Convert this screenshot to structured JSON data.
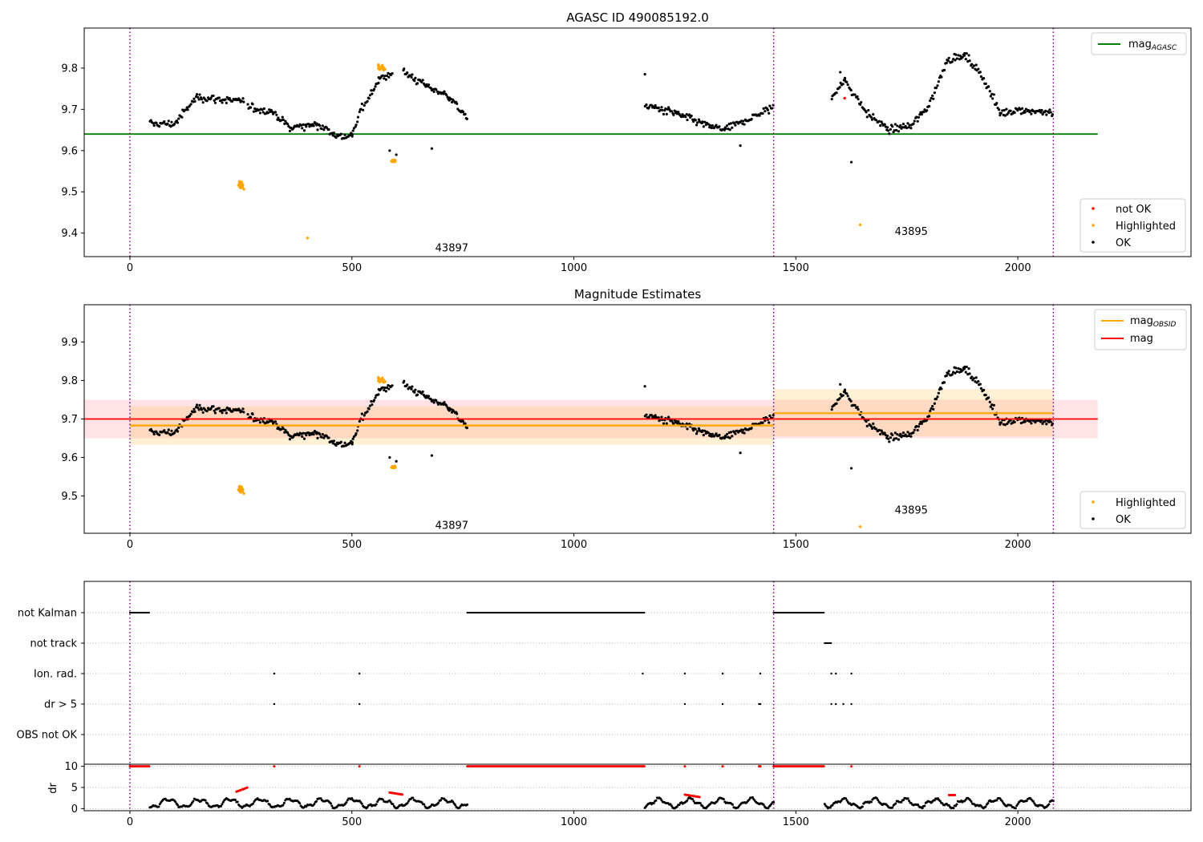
{
  "chart_data": [
    {
      "id": "agasc",
      "type": "scatter",
      "title": "AGASC ID 490085192.0",
      "xlim": [
        -103,
        2390
      ],
      "ylim": [
        9.343,
        9.897
      ],
      "xticks": [
        0,
        500,
        1000,
        1500,
        2000
      ],
      "yticks": [
        9.4,
        9.5,
        9.6,
        9.7,
        9.8
      ],
      "obsid_boundaries": [
        0,
        1450,
        2080
      ],
      "obsid_labels": [
        {
          "text": "43897",
          "x": 725,
          "y": 9.365
        },
        {
          "text": "43895",
          "x": 1760,
          "y": 9.405
        }
      ],
      "reference_line": {
        "name": "mag_AGASC",
        "value": 9.64,
        "x_range": [
          -103,
          2180
        ],
        "color": "#008000"
      },
      "segments": [
        {
          "x0": 45,
          "x1": 100,
          "y0": 9.665,
          "y1": 9.665
        },
        {
          "x0": 100,
          "x1": 150,
          "y0": 9.665,
          "y1": 9.73
        },
        {
          "x0": 150,
          "x1": 240,
          "y0": 9.73,
          "y1": 9.72
        },
        {
          "x0": 240,
          "x1": 258,
          "y0": 9.72,
          "y1": 9.72
        },
        {
          "x0": 265,
          "x1": 320,
          "y0": 9.705,
          "y1": 9.695
        },
        {
          "x0": 320,
          "x1": 360,
          "y0": 9.695,
          "y1": 9.655
        },
        {
          "x0": 360,
          "x1": 420,
          "y0": 9.655,
          "y1": 9.665
        },
        {
          "x0": 420,
          "x1": 470,
          "y0": 9.665,
          "y1": 9.635
        },
        {
          "x0": 470,
          "x1": 500,
          "y0": 9.635,
          "y1": 9.635
        },
        {
          "x0": 500,
          "x1": 520,
          "y0": 9.635,
          "y1": 9.7
        },
        {
          "x0": 520,
          "x1": 560,
          "y0": 9.7,
          "y1": 9.77
        },
        {
          "x0": 560,
          "x1": 590,
          "y0": 9.77,
          "y1": 9.79
        },
        {
          "x0": 615,
          "x1": 680,
          "y0": 9.79,
          "y1": 9.75
        },
        {
          "x0": 680,
          "x1": 720,
          "y0": 9.75,
          "y1": 9.73
        },
        {
          "x0": 720,
          "x1": 760,
          "y0": 9.73,
          "y1": 9.675
        },
        {
          "x0": 1160,
          "x1": 1230,
          "y0": 9.71,
          "y1": 9.69
        },
        {
          "x0": 1230,
          "x1": 1300,
          "y0": 9.69,
          "y1": 9.66
        },
        {
          "x0": 1300,
          "x1": 1340,
          "y0": 9.66,
          "y1": 9.65
        },
        {
          "x0": 1340,
          "x1": 1450,
          "y0": 9.65,
          "y1": 9.705
        },
        {
          "x0": 1580,
          "x1": 1610,
          "y0": 9.73,
          "y1": 9.77
        },
        {
          "x0": 1610,
          "x1": 1660,
          "y0": 9.77,
          "y1": 9.69
        },
        {
          "x0": 1660,
          "x1": 1710,
          "y0": 9.69,
          "y1": 9.65
        },
        {
          "x0": 1710,
          "x1": 1760,
          "y0": 9.65,
          "y1": 9.66
        },
        {
          "x0": 1760,
          "x1": 1800,
          "y0": 9.66,
          "y1": 9.71
        },
        {
          "x0": 1800,
          "x1": 1840,
          "y0": 9.71,
          "y1": 9.82
        },
        {
          "x0": 1840,
          "x1": 1880,
          "y0": 9.82,
          "y1": 9.83
        },
        {
          "x0": 1880,
          "x1": 1920,
          "y0": 9.83,
          "y1": 9.78
        },
        {
          "x0": 1920,
          "x1": 1960,
          "y0": 9.78,
          "y1": 9.69
        },
        {
          "x0": 1960,
          "x1": 2000,
          "y0": 9.69,
          "y1": 9.7
        },
        {
          "x0": 2000,
          "x1": 2080,
          "y0": 9.7,
          "y1": 9.69
        }
      ],
      "highlight_clusters": [
        {
          "cx": 250,
          "cy": 9.515,
          "sx": 12,
          "sy": 0.012,
          "n": 28
        },
        {
          "cx": 595,
          "cy": 9.575,
          "sx": 12,
          "sy": 0.005,
          "n": 18
        },
        {
          "cx": 565,
          "cy": 9.8,
          "sx": 22,
          "sy": 0.01,
          "n": 12
        }
      ],
      "outliers_ok": [
        {
          "x": 1160,
          "y": 9.785
        },
        {
          "x": 680,
          "y": 9.605
        },
        {
          "x": 1375,
          "y": 9.612
        },
        {
          "x": 1625,
          "y": 9.572
        },
        {
          "x": 1600,
          "y": 9.79
        },
        {
          "x": 585,
          "y": 9.6
        },
        {
          "x": 600,
          "y": 9.59
        }
      ],
      "outliers_highlighted": [
        {
          "x": 400,
          "y": 9.388
        },
        {
          "x": 1645,
          "y": 9.42
        }
      ],
      "outliers_not_ok": [
        {
          "x": 1610,
          "y": 9.727
        }
      ],
      "legends": [
        {
          "placement": "upper-right",
          "entries": [
            {
              "label": "mag",
              "subscript": "AGASC",
              "kind": "line",
              "color": "#008000"
            }
          ]
        },
        {
          "placement": "lower-right",
          "entries": [
            {
              "label": "not OK",
              "kind": "dot",
              "color": "#ff0000"
            },
            {
              "label": "Highlighted",
              "kind": "dot",
              "color": "#ffa500"
            },
            {
              "label": "OK",
              "kind": "dot",
              "color": "#000000"
            }
          ]
        }
      ]
    },
    {
      "id": "estimates",
      "type": "scatter",
      "title": "Magnitude Estimates",
      "xlim": [
        -103,
        2390
      ],
      "ylim": [
        9.403,
        9.997
      ],
      "xticks": [
        0,
        500,
        1000,
        1500,
        2000
      ],
      "yticks": [
        9.5,
        9.6,
        9.7,
        9.8,
        9.9
      ],
      "obsid_boundaries": [
        0,
        1450,
        2080
      ],
      "obsid_labels": [
        {
          "text": "43897",
          "x": 725,
          "y": 9.425
        },
        {
          "text": "43895",
          "x": 1760,
          "y": 9.465
        }
      ],
      "mag_line": {
        "name": "mag",
        "value": 9.7,
        "band": [
          9.65,
          9.75
        ],
        "x_range": [
          -103,
          2180
        ],
        "color": "#ff0000",
        "band_color": "#ffc0c8"
      },
      "obsid_lines": [
        {
          "x0": 0,
          "x1": 1450,
          "value": 9.683,
          "band": [
            9.633,
            9.733
          ]
        },
        {
          "x0": 1450,
          "x1": 2080,
          "value": 9.715,
          "band": [
            9.655,
            9.778
          ]
        }
      ],
      "obsid_color": "#ffa500",
      "legends": [
        {
          "placement": "upper-right",
          "entries": [
            {
              "label": "mag",
              "subscript": "OBSID",
              "kind": "line",
              "color": "#ffa500"
            },
            {
              "label": "mag",
              "kind": "line",
              "color": "#ff0000"
            }
          ]
        },
        {
          "placement": "lower-right",
          "entries": [
            {
              "label": "Highlighted",
              "kind": "dot",
              "color": "#ffa500"
            },
            {
              "label": "OK",
              "kind": "dot",
              "color": "#000000"
            }
          ]
        }
      ]
    },
    {
      "id": "flags",
      "type": "scatter",
      "xlim": [
        -103,
        2390
      ],
      "categories": [
        "not Kalman",
        "not track",
        "Ion. rad.",
        "dr > 5",
        "OBS not OK"
      ],
      "obsid_boundaries": [
        0,
        1450,
        2080
      ],
      "flag_ranges": [
        {
          "row": 0,
          "x0": 0,
          "x1": 45
        },
        {
          "row": 0,
          "x0": 760,
          "x1": 1160
        },
        {
          "row": 0,
          "x0": 1450,
          "x1": 1565
        },
        {
          "row": 1,
          "x0": 1565,
          "x1": 1580
        }
      ],
      "flag_points": [
        {
          "row": 2,
          "x": [
            325,
            517,
            1155,
            1250,
            1335,
            1420,
            1580,
            1590,
            1625
          ]
        },
        {
          "row": 3,
          "x": [
            325,
            517,
            1250,
            1335,
            1417,
            1420,
            1580,
            1590,
            1607,
            1625
          ]
        }
      ]
    },
    {
      "id": "dr",
      "type": "scatter",
      "xlim": [
        -103,
        2390
      ],
      "ylim": [
        -0.5,
        10.5
      ],
      "yticks": [
        0,
        5,
        10
      ],
      "ylabel": "dr",
      "obsid_boundaries": [
        0,
        1450,
        2080
      ],
      "dr_limit_x": [
        [
          0,
          45
        ],
        [
          760,
          1160
        ],
        [
          1450,
          1565
        ]
      ],
      "dr_limit_points": [
        325,
        517,
        1250,
        1335,
        1417,
        1420,
        1625
      ],
      "dr_segments": [
        [
          45,
          760
        ],
        [
          1160,
          1450
        ],
        [
          1565,
          2080
        ]
      ],
      "red_clusters": [
        {
          "x0": 240,
          "x1": 265,
          "y0": 4.0,
          "y1": 5.0
        },
        {
          "x0": 585,
          "x1": 615,
          "y0": 3.8,
          "y1": 3.3
        },
        {
          "x0": 1250,
          "x1": 1285,
          "y0": 3.3,
          "y1": 2.7
        },
        {
          "x0": 1845,
          "x1": 1860,
          "y0": 3.2,
          "y1": 3.2
        }
      ]
    }
  ]
}
